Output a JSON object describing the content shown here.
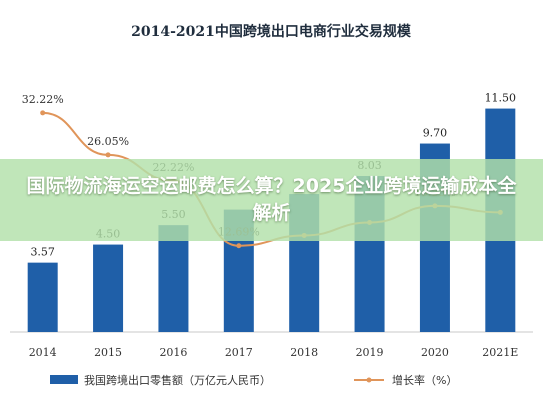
{
  "chart_data": {
    "type": "bar",
    "title": "2014-2021中国跨境出口电商行业交易规模",
    "categories": [
      "2014",
      "2015",
      "2016",
      "2017",
      "2018",
      "2019",
      "2020",
      "2021E"
    ],
    "series": [
      {
        "name": "我国跨境出口零售额（万亿元人民币）",
        "type": "bar",
        "color": "#1f5fa8",
        "values": [
          3.57,
          4.5,
          5.5,
          6.3,
          7.1,
          8.03,
          9.7,
          11.5
        ],
        "labels": [
          "3.57",
          "4.50",
          "5.50",
          "",
          "",
          "8.03",
          "9.70",
          "11.50"
        ]
      },
      {
        "name": "增长率（%）",
        "type": "line",
        "color": "#e0955a",
        "values": [
          32.22,
          26.05,
          22.22,
          12.69,
          14.2,
          16.1,
          18.55,
          17.6
        ],
        "labels": [
          "32.22%",
          "26.05%",
          "22.22%",
          "12.69%",
          "",
          "",
          "18.55%",
          ""
        ]
      }
    ],
    "ylim_left": [
      0,
      14
    ],
    "ylim_right": [
      0,
      40
    ],
    "legend_position": "bottom"
  },
  "overlay": {
    "text": "国际物流海运空运邮费怎么算？2025企业跨境运输成本全解析"
  }
}
